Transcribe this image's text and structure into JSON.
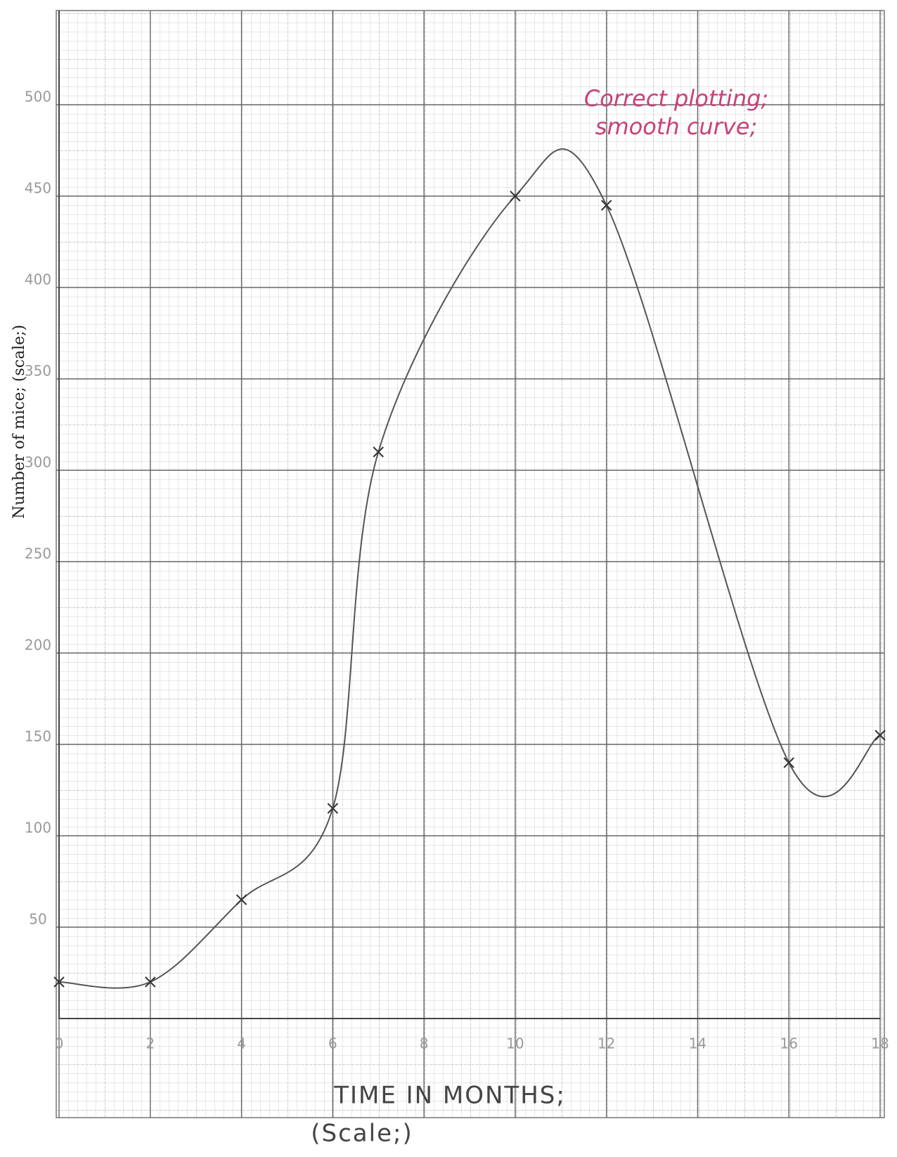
{
  "chart_data": {
    "type": "line",
    "ylabel": "Number of mice; (scale;)",
    "xlabel": "TIME IN MONTHS;",
    "xlabel_note": "(Scale;)",
    "annotation": [
      "Correct plotting;",
      "smooth curve;"
    ],
    "x": [
      0,
      2,
      4,
      6,
      7,
      10,
      12,
      16,
      18
    ],
    "values": [
      20,
      20,
      65,
      115,
      310,
      450,
      445,
      140,
      155
    ],
    "color": "#555555",
    "xlim": [
      0,
      18
    ],
    "ylim": [
      0,
      550
    ],
    "xticks": [
      0,
      2,
      4,
      6,
      8,
      10,
      12,
      14,
      16,
      18
    ],
    "yticks": [
      50,
      100,
      150,
      200,
      250,
      300,
      350,
      400,
      450,
      500
    ],
    "grid": true
  }
}
